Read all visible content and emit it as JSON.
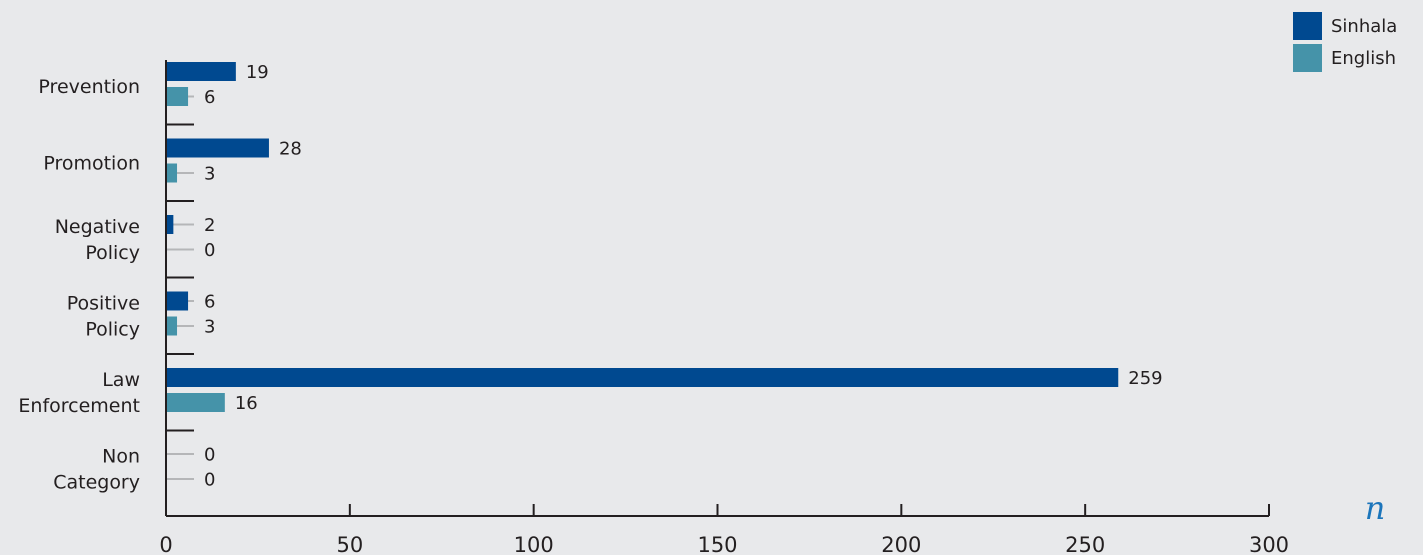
{
  "chart_data": {
    "type": "bar",
    "orientation": "horizontal",
    "categories": [
      [
        "Prevention"
      ],
      [
        "Promotion"
      ],
      [
        "Negative",
        "Policy"
      ],
      [
        "Positive",
        "Policy"
      ],
      [
        "Law",
        "Enforcement"
      ],
      [
        "Non",
        "Category"
      ]
    ],
    "series": [
      {
        "name": "Sinhala",
        "color": "#004990",
        "values": [
          19,
          28,
          2,
          6,
          259,
          0
        ]
      },
      {
        "name": "English",
        "color": "#4593a9",
        "values": [
          6,
          3,
          0,
          3,
          16,
          0
        ]
      }
    ],
    "xlim": [
      0,
      300
    ],
    "xticks": [
      0,
      50,
      100,
      150,
      200,
      250,
      300
    ],
    "xlabel": "n",
    "xlabel_color": "#1b75bb",
    "legend": "top-right",
    "grid": false
  }
}
